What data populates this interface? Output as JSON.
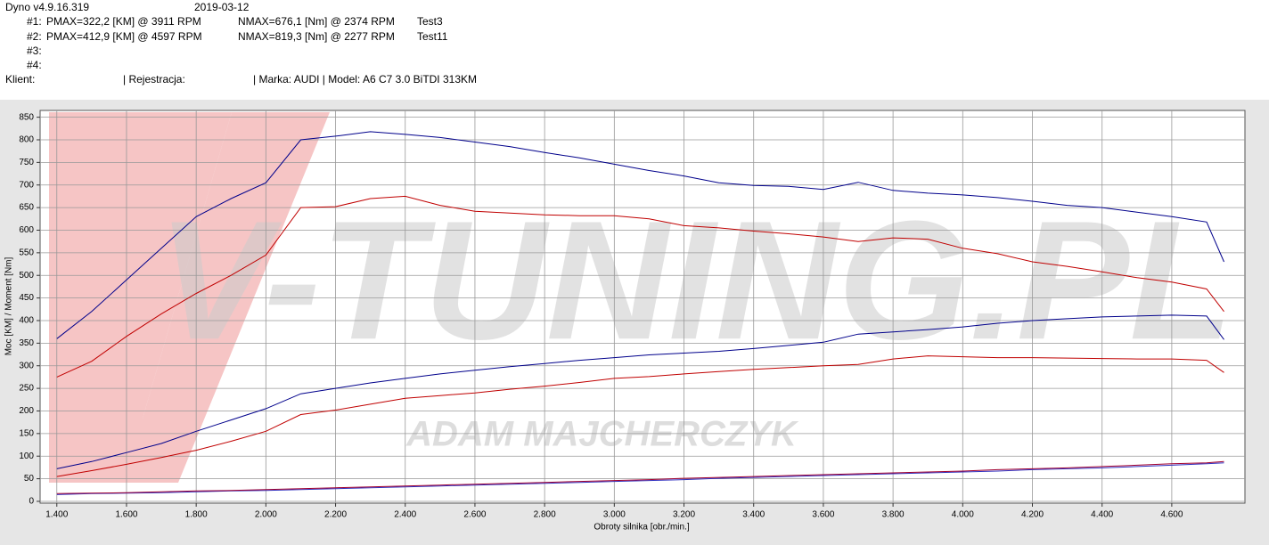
{
  "header": {
    "software": "Dyno v4.9.16.319",
    "date": "2019-03-12",
    "runs": [
      {
        "id": "#1:",
        "pmax": "PMAX=322,2 [KM] @ 3911 RPM",
        "nmax": "NMAX=676,1 [Nm] @ 2374 RPM",
        "test": "Test3"
      },
      {
        "id": "#2:",
        "pmax": "PMAX=412,9 [KM] @ 4597 RPM",
        "nmax": "NMAX=819,3 [Nm] @ 2277 RPM",
        "test": "Test11"
      },
      {
        "id": "#3:"
      },
      {
        "id": "#4:"
      }
    ],
    "client": "Klient:",
    "registration": "| Rejestracja:",
    "vehicle": "| Marka: AUDI | Model: A6 C7 3.0 BiTDI 313KM"
  },
  "watermark": {
    "logo": "V-TUNING.PL",
    "name": "ADAM MAJCHERCZYK"
  },
  "chart_data": {
    "type": "line",
    "xlabel": "Obroty silnika [obr./min.]",
    "ylabel": "Moc [KM] / Moment [Nm]",
    "xlim": [
      1352,
      4810
    ],
    "ylim": [
      -4,
      865
    ],
    "grid": true,
    "xticks": [
      {
        "value": 1400,
        "label": "1.400"
      },
      {
        "value": 1600,
        "label": "1.600"
      },
      {
        "value": 1800,
        "label": "1.800"
      },
      {
        "value": 2000,
        "label": "2.000"
      },
      {
        "value": 2200,
        "label": "2.200"
      },
      {
        "value": 2400,
        "label": "2.400"
      },
      {
        "value": 2600,
        "label": "2.600"
      },
      {
        "value": 2800,
        "label": "2.800"
      },
      {
        "value": 3000,
        "label": "3.000"
      },
      {
        "value": 3200,
        "label": "3.200"
      },
      {
        "value": 3400,
        "label": "3.400"
      },
      {
        "value": 3600,
        "label": "3.600"
      },
      {
        "value": 3800,
        "label": "3.800"
      },
      {
        "value": 4000,
        "label": "4.000"
      },
      {
        "value": 4200,
        "label": "4.200"
      },
      {
        "value": 4400,
        "label": "4.400"
      },
      {
        "value": 4600,
        "label": "4.600"
      }
    ],
    "yticks": [
      0,
      50,
      100,
      150,
      200,
      250,
      300,
      350,
      400,
      450,
      500,
      550,
      600,
      650,
      700,
      750,
      800,
      850
    ],
    "x": [
      1400,
      1500,
      1600,
      1700,
      1800,
      1900,
      2000,
      2100,
      2200,
      2300,
      2400,
      2500,
      2600,
      2700,
      2800,
      2900,
      3000,
      3100,
      3200,
      3300,
      3400,
      3500,
      3600,
      3700,
      3800,
      3900,
      4000,
      4100,
      4200,
      4300,
      4400,
      4500,
      4600,
      4700,
      4750
    ],
    "series": [
      {
        "color": "#00008b",
        "values": [
          360,
          420,
          490,
          560,
          630,
          670,
          705,
          800,
          808,
          818,
          812,
          805,
          795,
          785,
          772,
          760,
          746,
          732,
          720,
          705,
          699,
          697,
          690,
          706,
          688,
          682,
          678,
          672,
          664,
          655,
          650,
          640,
          630,
          618,
          530
        ]
      },
      {
        "color": "#c00000",
        "values": [
          275,
          310,
          365,
          415,
          460,
          500,
          545,
          650,
          652,
          670,
          675,
          655,
          642,
          638,
          634,
          632,
          632,
          625,
          610,
          605,
          598,
          592,
          585,
          575,
          583,
          580,
          560,
          548,
          530,
          520,
          508,
          495,
          485,
          470,
          420
        ]
      },
      {
        "color": "#00008b",
        "values": [
          72,
          88,
          108,
          128,
          155,
          180,
          205,
          238,
          250,
          262,
          272,
          282,
          290,
          298,
          305,
          312,
          318,
          324,
          328,
          332,
          338,
          345,
          352,
          370,
          375,
          380,
          386,
          394,
          400,
          404,
          408,
          410,
          412,
          410,
          358
        ]
      },
      {
        "color": "#c00000",
        "values": [
          55,
          68,
          82,
          97,
          113,
          133,
          155,
          192,
          202,
          215,
          228,
          234,
          240,
          248,
          255,
          263,
          272,
          276,
          282,
          287,
          292,
          296,
          300,
          303,
          315,
          322,
          320,
          318,
          318,
          317,
          316,
          315,
          315,
          312,
          285
        ]
      },
      {
        "color": "#3030c0",
        "values": [
          15,
          17,
          18,
          19,
          21,
          23,
          24,
          26,
          28,
          30,
          32,
          34,
          36,
          38,
          40,
          42,
          44,
          46,
          48,
          51,
          53,
          55,
          57,
          59,
          61,
          63,
          65,
          67,
          70,
          72,
          74,
          77,
          80,
          83,
          85
        ]
      },
      {
        "color": "#a00030",
        "values": [
          17,
          18,
          19,
          21,
          23,
          24,
          26,
          28,
          30,
          32,
          34,
          36,
          38,
          40,
          42,
          44,
          46,
          48,
          51,
          53,
          55,
          57,
          59,
          61,
          63,
          65,
          67,
          70,
          72,
          74,
          77,
          80,
          83,
          85,
          88
        ]
      }
    ]
  }
}
